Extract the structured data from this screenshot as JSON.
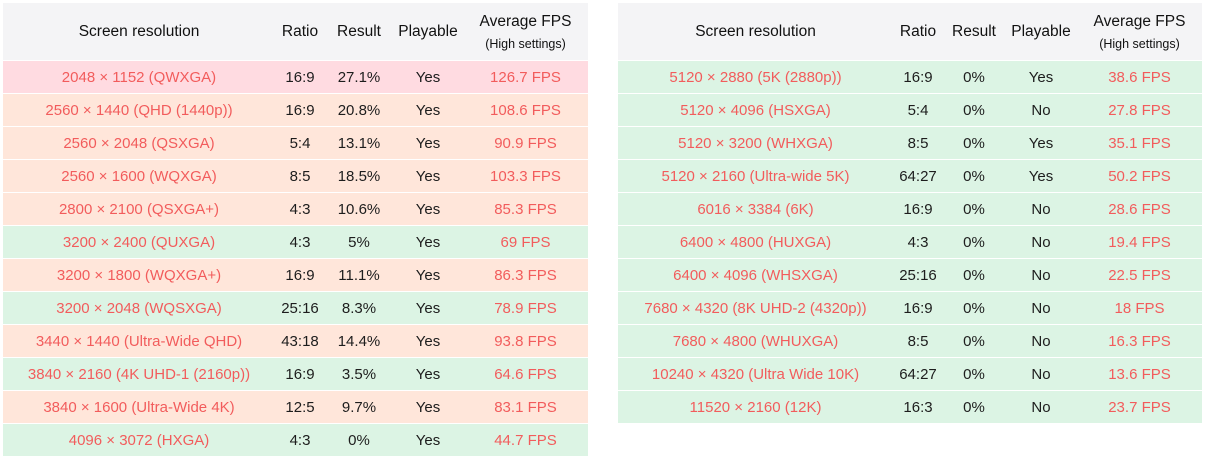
{
  "colors": {
    "header_bg": "#f4f4f6",
    "text_red": "#f25c5c",
    "row_pink": "#ffdbe1",
    "row_orange": "#ffe6da",
    "row_green": "#dcf4e4"
  },
  "left_table": {
    "headers": {
      "resolution": "Screen resolution",
      "ratio": "Ratio",
      "result": "Result",
      "playable": "Playable",
      "fps": "Average FPS",
      "fps_sub": "(High settings)"
    },
    "rows": [
      {
        "resolution": "2048 × 1152 (QWXGA)",
        "ratio": "16:9",
        "result": "27.1%",
        "playable": "Yes",
        "fps": "126.7 FPS",
        "tone": "pink"
      },
      {
        "resolution": "2560 × 1440 (QHD (1440p))",
        "ratio": "16:9",
        "result": "20.8%",
        "playable": "Yes",
        "fps": "108.6 FPS",
        "tone": "orange"
      },
      {
        "resolution": "2560 × 2048 (QSXGA)",
        "ratio": "5:4",
        "result": "13.1%",
        "playable": "Yes",
        "fps": "90.9 FPS",
        "tone": "orange"
      },
      {
        "resolution": "2560 × 1600 (WQXGA)",
        "ratio": "8:5",
        "result": "18.5%",
        "playable": "Yes",
        "fps": "103.3 FPS",
        "tone": "orange"
      },
      {
        "resolution": "2800 × 2100 (QSXGA+)",
        "ratio": "4:3",
        "result": "10.6%",
        "playable": "Yes",
        "fps": "85.3 FPS",
        "tone": "orange"
      },
      {
        "resolution": "3200 × 2400 (QUXGA)",
        "ratio": "4:3",
        "result": "5%",
        "playable": "Yes",
        "fps": "69 FPS",
        "tone": "green"
      },
      {
        "resolution": "3200 × 1800 (WQXGA+)",
        "ratio": "16:9",
        "result": "11.1%",
        "playable": "Yes",
        "fps": "86.3 FPS",
        "tone": "orange"
      },
      {
        "resolution": "3200 × 2048 (WQSXGA)",
        "ratio": "25:16",
        "result": "8.3%",
        "playable": "Yes",
        "fps": "78.9 FPS",
        "tone": "green"
      },
      {
        "resolution": "3440 × 1440 (Ultra-Wide QHD)",
        "ratio": "43:18",
        "result": "14.4%",
        "playable": "Yes",
        "fps": "93.8 FPS",
        "tone": "orange"
      },
      {
        "resolution": "3840 × 2160 (4K UHD-1 (2160p))",
        "ratio": "16:9",
        "result": "3.5%",
        "playable": "Yes",
        "fps": "64.6 FPS",
        "tone": "green"
      },
      {
        "resolution": "3840 × 1600 (Ultra-Wide 4K)",
        "ratio": "12:5",
        "result": "9.7%",
        "playable": "Yes",
        "fps": "83.1 FPS",
        "tone": "orange"
      },
      {
        "resolution": "4096 × 3072 (HXGA)",
        "ratio": "4:3",
        "result": "0%",
        "playable": "Yes",
        "fps": "44.7 FPS",
        "tone": "green"
      }
    ]
  },
  "right_table": {
    "headers": {
      "resolution": "Screen resolution",
      "ratio": "Ratio",
      "result": "Result",
      "playable": "Playable",
      "fps": "Average FPS",
      "fps_sub": "(High settings)"
    },
    "rows": [
      {
        "resolution": "5120 × 2880 (5K (2880p))",
        "ratio": "16:9",
        "result": "0%",
        "playable": "Yes",
        "fps": "38.6 FPS",
        "tone": "green"
      },
      {
        "resolution": "5120 × 4096 (HSXGA)",
        "ratio": "5:4",
        "result": "0%",
        "playable": "No",
        "fps": "27.8 FPS",
        "tone": "green"
      },
      {
        "resolution": "5120 × 3200 (WHXGA)",
        "ratio": "8:5",
        "result": "0%",
        "playable": "Yes",
        "fps": "35.1 FPS",
        "tone": "green"
      },
      {
        "resolution": "5120 × 2160 (Ultra-wide 5K)",
        "ratio": "64:27",
        "result": "0%",
        "playable": "Yes",
        "fps": "50.2 FPS",
        "tone": "green"
      },
      {
        "resolution": "6016 × 3384 (6K)",
        "ratio": "16:9",
        "result": "0%",
        "playable": "No",
        "fps": "28.6 FPS",
        "tone": "green"
      },
      {
        "resolution": "6400 × 4800 (HUXGA)",
        "ratio": "4:3",
        "result": "0%",
        "playable": "No",
        "fps": "19.4 FPS",
        "tone": "green"
      },
      {
        "resolution": "6400 × 4096 (WHSXGA)",
        "ratio": "25:16",
        "result": "0%",
        "playable": "No",
        "fps": "22.5 FPS",
        "tone": "green"
      },
      {
        "resolution": "7680 × 4320 (8K UHD-2 (4320p))",
        "ratio": "16:9",
        "result": "0%",
        "playable": "No",
        "fps": "18 FPS",
        "tone": "green"
      },
      {
        "resolution": "7680 × 4800 (WHUXGA)",
        "ratio": "8:5",
        "result": "0%",
        "playable": "No",
        "fps": "16.3 FPS",
        "tone": "green"
      },
      {
        "resolution": "10240 × 4320 (Ultra Wide 10K)",
        "ratio": "64:27",
        "result": "0%",
        "playable": "No",
        "fps": "13.6 FPS",
        "tone": "green"
      },
      {
        "resolution": "11520 × 2160 (12K)",
        "ratio": "16:3",
        "result": "0%",
        "playable": "No",
        "fps": "23.7 FPS",
        "tone": "green"
      }
    ]
  }
}
